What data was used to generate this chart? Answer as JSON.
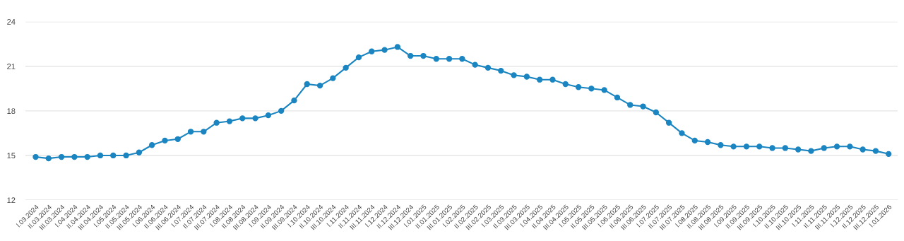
{
  "chart_data": {
    "type": "line",
    "categories": [
      "I.03.2024",
      "II.03.2024",
      "III.03.2024",
      "I.04.2024",
      "II.04.2024",
      "III.04.2024",
      "I.05.2024",
      "II.05.2024",
      "III.05.2024",
      "I.06.2024",
      "II.06.2024",
      "III.06.2024",
      "I.07.2024",
      "II.07.2024",
      "III.07.2024",
      "I.08.2024",
      "II.08.2024",
      "III.08.2024",
      "I.09.2024",
      "II.09.2024",
      "III.09.2024",
      "I.10.2024",
      "II.10.2024",
      "III.10.2024",
      "I.11.2024",
      "II.11.2024",
      "III.11.2024",
      "I.12.2024",
      "II.12.2024",
      "III.12.2024",
      "I.01.2025",
      "II.01.2025",
      "III.01.2025",
      "I.02.2025",
      "II.02.2025",
      "III.02.2025",
      "I.03.2025",
      "II.03.2025",
      "III.03.2025",
      "I.04.2025",
      "II.04.2025",
      "III.04.2025",
      "I.05.2025",
      "II.05.2025",
      "III.05.2025",
      "I.06.2025",
      "II.06.2025",
      "III.06.2025",
      "I.07.2025",
      "II.07.2025",
      "III.07.2025",
      "I.08.2025",
      "II.08.2025",
      "III.08.2025",
      "I.09.2025",
      "II.09.2025",
      "III.09.2025",
      "I.10.2025",
      "II.10.2025",
      "III.10.2025",
      "I.11.2025",
      "II.11.2025",
      "III.11.2025",
      "I.12.2025",
      "II.12.2025",
      "III.12.2025",
      "I.01.2026"
    ],
    "series": [
      {
        "color": "#1a85c1",
        "values": [
          14.9,
          14.8,
          14.9,
          14.9,
          14.9,
          15.0,
          15.0,
          15.0,
          15.2,
          15.7,
          16.0,
          16.1,
          16.6,
          16.6,
          17.2,
          17.3,
          17.5,
          17.5,
          17.7,
          18.0,
          18.7,
          19.8,
          19.7,
          20.2,
          20.9,
          21.6,
          22.0,
          22.1,
          22.3,
          21.7,
          21.7,
          21.5,
          21.5,
          21.5,
          21.1,
          20.9,
          20.7,
          20.4,
          20.3,
          20.1,
          20.1,
          19.8,
          19.6,
          19.5,
          19.4,
          18.9,
          18.4,
          18.3,
          17.9,
          17.2,
          16.5,
          16.0,
          15.9,
          15.7,
          15.6,
          15.6,
          15.6,
          15.5,
          15.5,
          15.4,
          15.3,
          15.5,
          15.6,
          15.6,
          15.4,
          15.3,
          15.1
        ]
      }
    ],
    "ylim": [
      12,
      24
    ],
    "yticks": [
      12,
      15,
      18,
      21,
      24
    ],
    "grid": "y",
    "marker": "circle",
    "line_style": "solid",
    "legend": false
  }
}
